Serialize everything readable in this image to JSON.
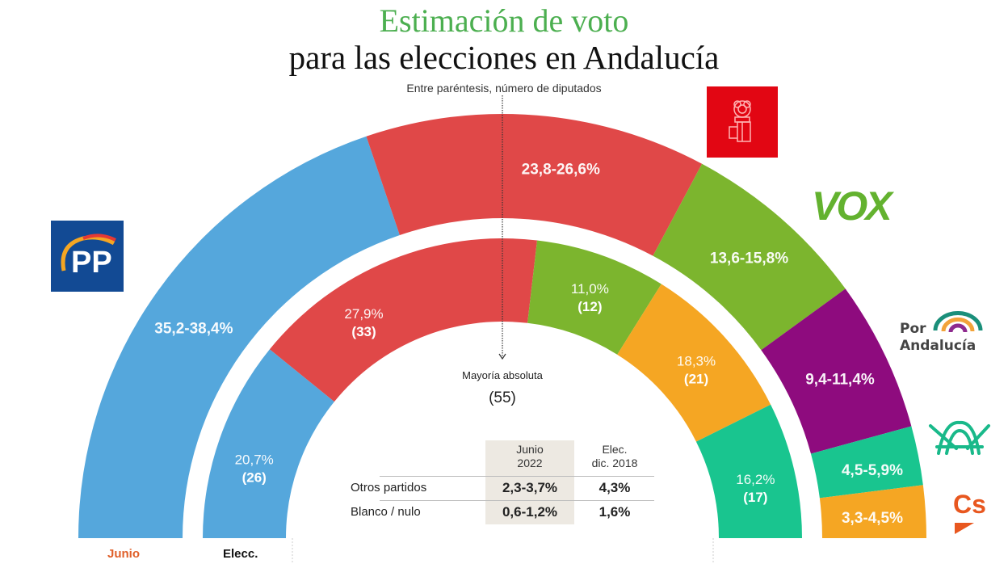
{
  "header": {
    "title_line1": "Estimación de voto",
    "title_line2": "para las elecciones en Andalucía",
    "subtitle": "Entre paréntesis, número de diputados"
  },
  "majority": {
    "label": "Mayoría absoluta",
    "seats": "(55)"
  },
  "ring_labels": {
    "outer": "Junio",
    "inner": "Elecc."
  },
  "colors": {
    "title_green": "#4caf50",
    "junio_label": "#e0602a",
    "pp": "#55a7dc",
    "psoe": "#e04848",
    "vox": "#7cb52e",
    "por_andalucia": "#8e0b7e",
    "adelante_andalucia": "#19c58f",
    "cs": "#f5a623"
  },
  "logos": {
    "pp": "PP",
    "psoe": "psoe-rose-fist-icon",
    "vox": "VOX",
    "por_andalucia_line1": "Por",
    "por_andalucia_line2": "Andalucía",
    "adelante_andalucia": "adelante-andalucia-icon",
    "cs": "Cs"
  },
  "table": {
    "col_headers": [
      [
        "Junio",
        "2022"
      ],
      [
        "Elec.",
        "dic. 2018"
      ]
    ],
    "rows": [
      {
        "label": "Otros partidos",
        "junio": "2,3-3,7%",
        "elec": "4,3%"
      },
      {
        "label": "Blanco / nulo",
        "junio": "0,6-1,2%",
        "elec": "1,6%"
      }
    ]
  },
  "chart_data": {
    "type": "pie",
    "subtype": "semicircle-double-ring",
    "title": "Estimación de voto para las elecciones en Andalucía",
    "subtitle": "Entre paréntesis, número de diputados",
    "majority_seats": 55,
    "series": [
      {
        "name": "Junio 2022",
        "ring": "outer",
        "parties": [
          "PP",
          "PSOE",
          "VOX",
          "Por Andalucía",
          "Adelante Andalucía",
          "Cs"
        ],
        "labels": [
          "35,2-38,4%",
          "23,8-26,6%",
          "13,6-15,8%",
          "9,4-11,4%",
          "4,5-5,9%",
          "3,3-4,5%"
        ],
        "range_low": [
          35.2,
          23.8,
          13.6,
          9.4,
          4.5,
          3.3
        ],
        "range_high": [
          38.4,
          26.6,
          15.8,
          11.4,
          5.9,
          4.5
        ],
        "shares": [
          39.6,
          26.0,
          14.4,
          11.5,
          4.5,
          4.0
        ],
        "colors": [
          "#55a7dc",
          "#e04848",
          "#7cb52e",
          "#8e0b7e",
          "#19c58f",
          "#f5a623"
        ]
      },
      {
        "name": "Elecc. dic. 2018",
        "ring": "inner",
        "parties": [
          "PP",
          "PSOE",
          "VOX",
          "Cs",
          "Adelante Andalucía"
        ],
        "labels": [
          "20,7%",
          "27,9%",
          "11,0%",
          "18,3%",
          "16,2%"
        ],
        "seat_labels": [
          "(26)",
          "(33)",
          "(12)",
          "(21)",
          "(17)"
        ],
        "values": [
          20.7,
          27.9,
          11.0,
          18.3,
          16.2
        ],
        "seats": [
          26,
          33,
          12,
          21,
          17
        ],
        "shares": [
          21.7,
          32.0,
          14.1,
          17.5,
          14.7
        ],
        "colors": [
          "#55a7dc",
          "#e04848",
          "#7cb52e",
          "#f5a623",
          "#19c58f"
        ]
      }
    ]
  }
}
